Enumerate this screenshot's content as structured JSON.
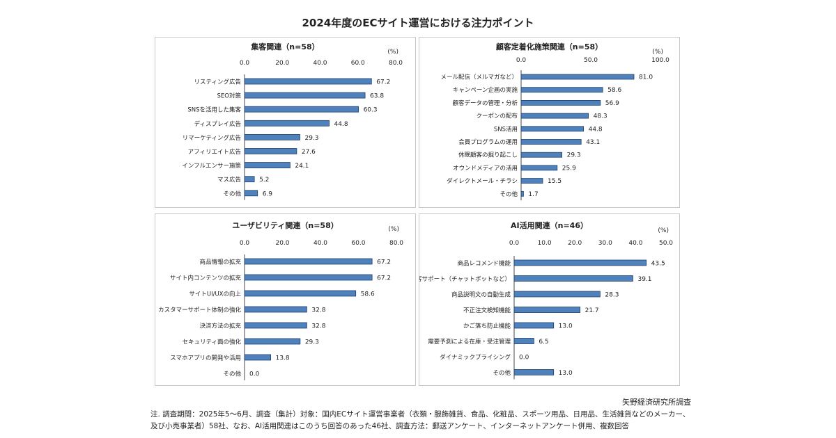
{
  "page": {
    "title": "2024年度のECサイト運営における注力ポイント",
    "source": "矢野経済研究所調査",
    "note": "注. 調査期間：2025年5～6月、調査（集計）対象：国内ECサイト運営事業者（衣類・服飾雑貨、食品、化粧品、スポーツ用品、日用品、生活雑貨などのメーカー、及び小売事業者）58社、なお、AI活用関連はこのうち回答のあった46社、調査方法：郵送アンケート、インターネットアンケート併用、複数回答"
  },
  "chart_data": [
    {
      "type": "bar",
      "orientation": "horizontal",
      "title": "集客関連（n=58）",
      "unit": "(%)",
      "ticks": [
        "0.0",
        "20.0",
        "40.0",
        "60.0",
        "80.0"
      ],
      "xlim": [
        0,
        80
      ],
      "categories": [
        "リスティング広告",
        "SEO対策",
        "SNSを活用した集客",
        "ディスプレイ広告",
        "リマーケティング広告",
        "アフィリエイト広告",
        "インフルエンサー施策",
        "マス広告",
        "その他"
      ],
      "values": [
        67.2,
        63.8,
        60.3,
        44.8,
        29.3,
        27.6,
        24.1,
        5.2,
        6.9
      ],
      "labels": [
        "67.2",
        "63.8",
        "60.3",
        "44.8",
        "29.3",
        "27.6",
        "24.1",
        "5.2",
        "6.9"
      ]
    },
    {
      "type": "bar",
      "orientation": "horizontal",
      "title": "顧客定着化施策関連（n=58）",
      "unit": "(%)",
      "ticks": [
        "0.0",
        "50.0",
        "100.0"
      ],
      "xlim": [
        0,
        100
      ],
      "categories": [
        "メール配信（メルマガなど）",
        "キャンペーン企画の実施",
        "顧客データの管理・分析",
        "クーポンの配布",
        "SNS活用",
        "会員プログラムの運用",
        "休眠顧客の掘り起こし",
        "オウンドメディアの活用",
        "ダイレクトメール・チラシ",
        "その他"
      ],
      "values": [
        81.0,
        58.6,
        56.9,
        48.3,
        44.8,
        43.1,
        29.3,
        25.9,
        15.5,
        1.7
      ],
      "labels": [
        "81.0",
        "58.6",
        "56.9",
        "48.3",
        "44.8",
        "43.1",
        "29.3",
        "25.9",
        "15.5",
        "1.7"
      ]
    },
    {
      "type": "bar",
      "orientation": "horizontal",
      "title": "ユーザビリティ関連（n=58）",
      "unit": "(%)",
      "ticks": [
        "0.0",
        "20.0",
        "40.0",
        "60.0",
        "80.0"
      ],
      "xlim": [
        0,
        80
      ],
      "categories": [
        "商品情報の拡充",
        "サイト内コンテンツの拡充",
        "サイトUI/UXの向上",
        "カスタマーサポート体制の強化",
        "決済方法の拡充",
        "セキュリティ面の強化",
        "スマホアプリの開発や活用",
        "その他"
      ],
      "values": [
        67.2,
        67.2,
        58.6,
        32.8,
        32.8,
        29.3,
        13.8,
        0.0
      ],
      "labels": [
        "67.2",
        "67.2",
        "58.6",
        "32.8",
        "32.8",
        "29.3",
        "13.8",
        "0.0"
      ]
    },
    {
      "type": "bar",
      "orientation": "horizontal",
      "title": "AI活用関連（n=46）",
      "unit": "(%)",
      "ticks": [
        "0.0",
        "10.0",
        "20.0",
        "30.0",
        "40.0",
        "50.0"
      ],
      "xlim": [
        0,
        50
      ],
      "categories": [
        "商品レコメンド機能",
        "顧客サポート（チャットボットなど）",
        "商品説明文の自動生成",
        "不正注文検知機能",
        "かご落ち防止機能",
        "需要予測による在庫・受注管理",
        "ダイナミックプライシング",
        "その他"
      ],
      "values": [
        43.5,
        39.1,
        28.3,
        21.7,
        13.0,
        6.5,
        0.0,
        13.0
      ],
      "labels": [
        "43.5",
        "39.1",
        "28.3",
        "21.7",
        "13.0",
        "6.5",
        "0.0",
        "13.0"
      ]
    }
  ],
  "colors": {
    "bar_fill": "#4f81bd",
    "bar_stroke": "#1f3f66",
    "panel_border": "#c9c9c9"
  }
}
